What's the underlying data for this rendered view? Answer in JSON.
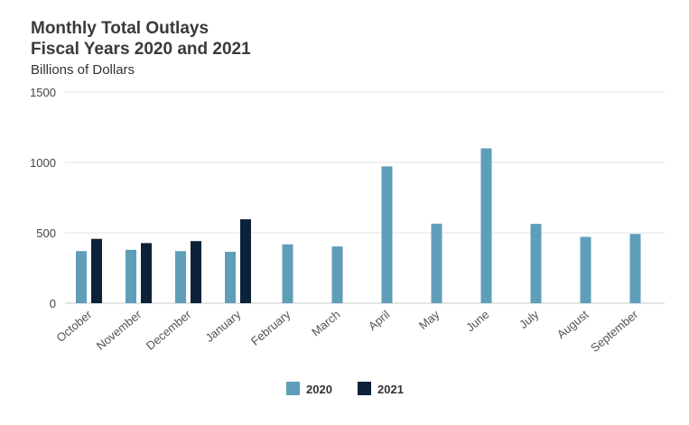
{
  "chart_data": {
    "type": "bar",
    "title_line1": "Monthly Total Outlays",
    "title_line2": "Fiscal Years 2020 and 2021",
    "ylabel": "Billions of Dollars",
    "xlabel": "",
    "ylim": [
      0,
      1500
    ],
    "yticks": [
      0,
      500,
      1000,
      1500
    ],
    "grid": true,
    "legend_position": "bottom-center",
    "categories": [
      "October",
      "November",
      "December",
      "January",
      "February",
      "March",
      "April",
      "May",
      "June",
      "July",
      "August",
      "September"
    ],
    "series": [
      {
        "name": "2020",
        "color": "#5f9eb8",
        "values": [
          370,
          379,
          370,
          365,
          418,
          403,
          972,
          565,
          1100,
          563,
          471,
          492
        ]
      },
      {
        "name": "2021",
        "color": "#0b2239",
        "values": [
          457,
          427,
          441,
          596,
          null,
          null,
          null,
          null,
          null,
          null,
          null,
          null
        ]
      }
    ]
  }
}
